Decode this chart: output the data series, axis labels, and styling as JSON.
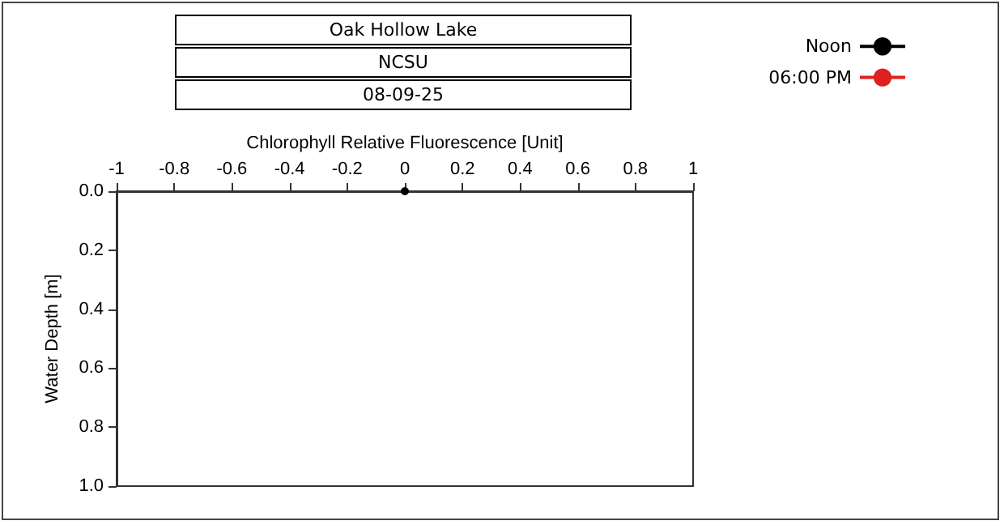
{
  "chart_data": {
    "type": "line",
    "title": "Oak Hollow Lake",
    "subtitle": "NCSU",
    "annotations": [
      "08-09-25"
    ],
    "xlabel": "Chlorophyll Relative Fluorescence [Unit]",
    "ylabel": "Water Depth [m]",
    "xlim": [
      -1,
      1
    ],
    "xticks": [
      -1,
      -0.8,
      -0.6,
      -0.4,
      -0.2,
      0,
      0.2,
      0.4,
      0.6,
      0.8,
      1
    ],
    "ylim": [
      1,
      0
    ],
    "yticks": [
      {
        "value": 0,
        "label": "0.0"
      },
      0.2,
      0.4,
      0.6,
      0.8,
      {
        "value": 1,
        "label": "1.0"
      }
    ],
    "series": [
      {
        "name": "Noon",
        "color": "#000000",
        "x": [
          0
        ],
        "values": [
          0
        ]
      },
      {
        "name": "06:00 PM",
        "color": "#e02020"
      }
    ],
    "marker": "circle",
    "line_style": "solid",
    "legend": "top right"
  }
}
